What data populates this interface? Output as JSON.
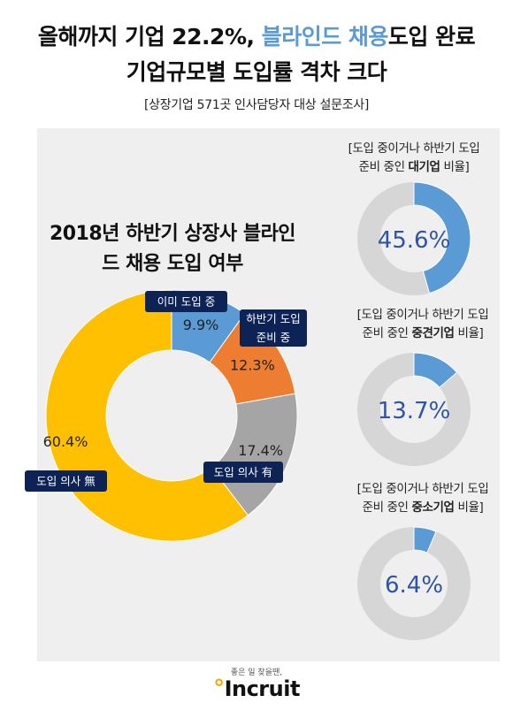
{
  "headline": {
    "line1_part1": "올해까지 기업 22.2%, ",
    "line1_accent": "블라인드 채용",
    "line1_part2": "도입 완료",
    "line2": "기업규모별 도입률 격차 크다"
  },
  "subtitle": "[상장기업 571곳 인사담당자 대상 설문조사]",
  "colors": {
    "yellow": "#fec000",
    "blue": "#5b9bd5",
    "orange": "#ed7d31",
    "gray": "#a5a5a5",
    "navy": "#0d2356",
    "ring_track": "#d6d6d6",
    "small_value_text": "#2e54a6",
    "panel_bg": "#efefef"
  },
  "chart_data": [
    {
      "type": "pie",
      "title": "2018년 하반기 상장사 블라인드 채용 도입 여부",
      "categories": [
        "이미 도입 중",
        "하반기 도입 준비 중",
        "도입 의사 有",
        "도입 의사 無"
      ],
      "values": [
        9.9,
        12.3,
        17.4,
        60.4
      ],
      "value_labels": [
        "9.9%",
        "12.3%",
        "17.4%",
        "60.4%"
      ],
      "colors": [
        "#5b9bd5",
        "#ed7d31",
        "#a5a5a5",
        "#fec000"
      ],
      "legend_placement": "on-chart callouts"
    },
    {
      "type": "pie",
      "title_prefix": "[도입 중이거나 하반기 도입",
      "title_mid": "준비 중인 ",
      "title_bold": "대기업",
      "title_suffix": " 비율]",
      "value": 45.6,
      "value_label": "45.6%"
    },
    {
      "type": "pie",
      "title_prefix": "[도입 중이거나 하반기 도입",
      "title_mid": "준비 중인 ",
      "title_bold": "중견기업",
      "title_suffix": " 비율]",
      "value": 13.7,
      "value_label": "13.7%"
    },
    {
      "type": "pie",
      "title_prefix": "[도입 중이거나 하반기 도입",
      "title_mid": "준비 중인 ",
      "title_bold": "중소기업",
      "title_suffix": " 비율]",
      "value": 6.4,
      "value_label": "6.4%"
    }
  ],
  "footer": {
    "tagline": "좋은 일 찾을땐,",
    "logo": "Incruit"
  }
}
